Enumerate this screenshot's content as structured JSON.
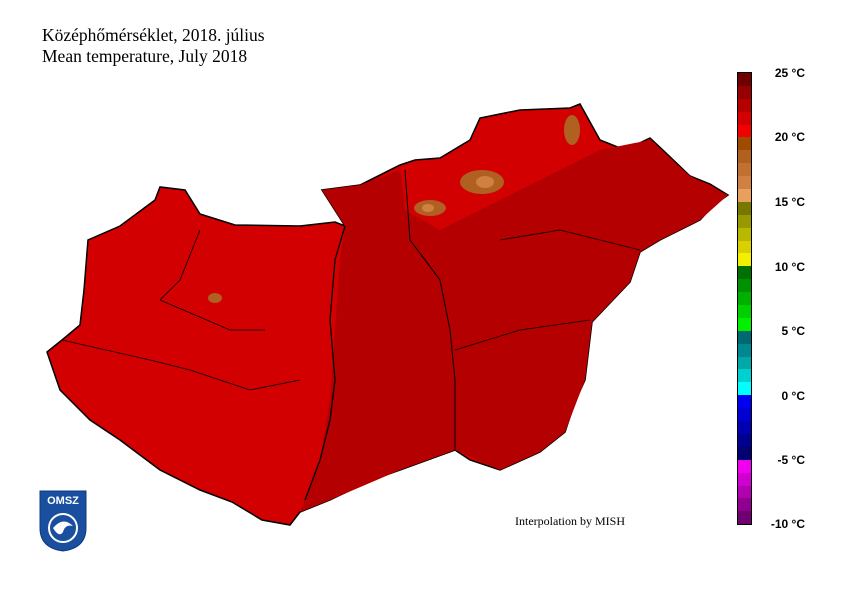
{
  "title": {
    "hu": "Középhőmérséklet, 2018. július",
    "en": "Mean temperature, July 2018"
  },
  "credit": "Interpolation by MISH",
  "logo": {
    "text": "OMSZ"
  },
  "legend": {
    "unit": "°C",
    "min": -10,
    "max": 25,
    "ticks": [
      "25 °C",
      "20 °C",
      "15 °C",
      "10 °C",
      "5 °C",
      "0 °C",
      "-5 °C",
      "-10 °C"
    ],
    "colors_top_to_bottom": [
      "#6e0000",
      "#960000",
      "#b40000",
      "#d20000",
      "#f00000",
      "#a04c00",
      "#b06020",
      "#c07030",
      "#d08040",
      "#e8a060",
      "#787800",
      "#989800",
      "#b8b800",
      "#d8d000",
      "#f0f000",
      "#007000",
      "#009000",
      "#00b000",
      "#00d000",
      "#00f000",
      "#006870",
      "#008890",
      "#00a8a8",
      "#00d0d0",
      "#00ffff",
      "#0000f0",
      "#0000d0",
      "#0000b0",
      "#000090",
      "#000070",
      "#f000f0",
      "#d000d0",
      "#b000b0",
      "#900090",
      "#700070"
    ]
  },
  "map": {
    "region": "Hungary",
    "dominant_range": "20–23 °C",
    "colors": {
      "west": "#d20000",
      "east": "#b40000",
      "mountains": "#b06020",
      "peaks": "#d08040",
      "border": "#000000"
    }
  }
}
